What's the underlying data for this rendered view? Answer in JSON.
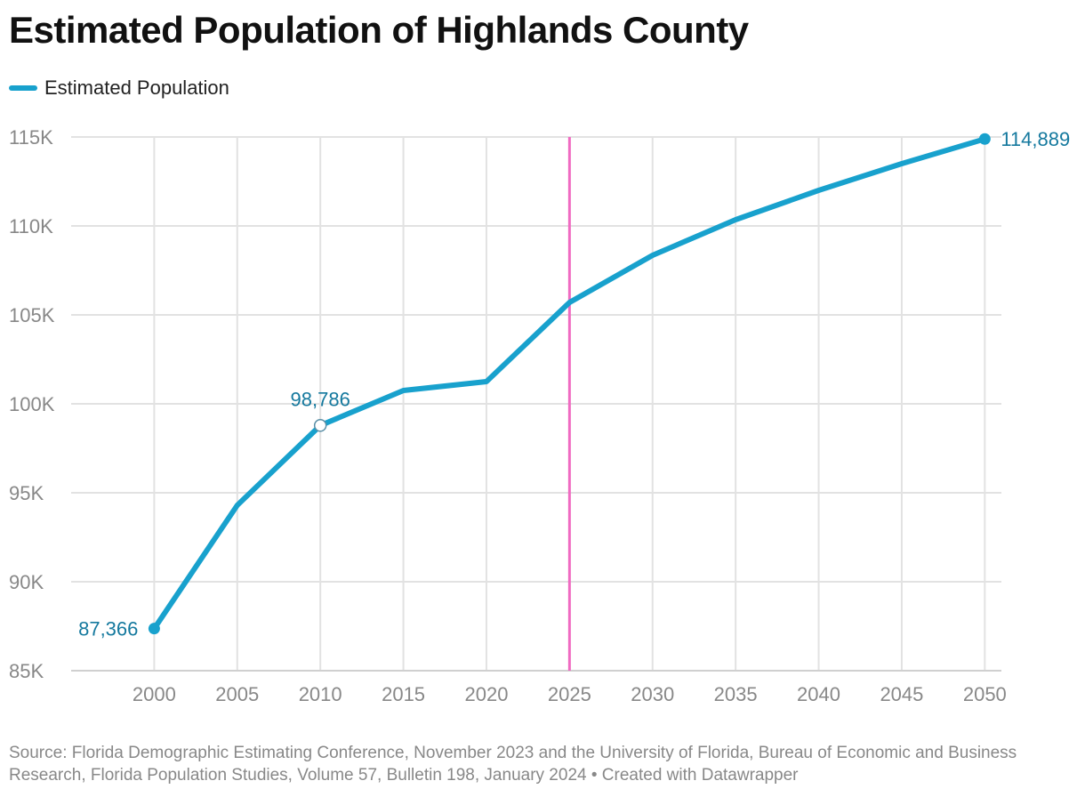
{
  "title": "Estimated Population of Highlands County",
  "legend": {
    "label": "Estimated Population"
  },
  "colors": {
    "series": "#18a1cd",
    "label": "#15799e",
    "reference_line": "#f06bc2",
    "grid": "#e2e2e2",
    "tick": "#888888"
  },
  "chart_data": {
    "type": "line",
    "title": "Estimated Population of Highlands County",
    "xlabel": "",
    "ylabel": "",
    "x": [
      2000,
      2005,
      2010,
      2015,
      2020,
      2025,
      2030,
      2035,
      2040,
      2045,
      2050
    ],
    "series": [
      {
        "name": "Estimated Population",
        "values": [
          87366,
          94300,
          98786,
          100750,
          101250,
          105700,
          108350,
          110350,
          112000,
          113500,
          114889
        ]
      }
    ],
    "xlim": [
      1995,
      2051
    ],
    "ylim": [
      85000,
      115000
    ],
    "x_ticks": [
      "2000",
      "2005",
      "2010",
      "2015",
      "2020",
      "2025",
      "2030",
      "2035",
      "2040",
      "2045",
      "2050"
    ],
    "y_ticks": [
      {
        "value": 85000,
        "label": "85K"
      },
      {
        "value": 90000,
        "label": "90K"
      },
      {
        "value": 95000,
        "label": "95K"
      },
      {
        "value": 100000,
        "label": "100K"
      },
      {
        "value": 105000,
        "label": "105K"
      },
      {
        "value": 110000,
        "label": "110K"
      },
      {
        "value": 115000,
        "label": "115K"
      }
    ],
    "reference_line_x": 2025,
    "annotations": [
      {
        "x": 2000,
        "y": 87366,
        "text": "87,366",
        "marker": "filled",
        "position": "left"
      },
      {
        "x": 2010,
        "y": 98786,
        "text": "98,786",
        "marker": "hollow",
        "position": "above"
      },
      {
        "x": 2050,
        "y": 114889,
        "text": "114,889",
        "marker": "filled",
        "position": "right"
      }
    ],
    "grid": true,
    "legend_position": "top-left"
  },
  "footer": {
    "source": "Source: Florida Demographic Estimating Conference, November 2023 and the University of Florida, Bureau of Economic and Business Research, Florida Population Studies, Volume 57, Bulletin 198, January 2024",
    "credit": " • Created with Datawrapper"
  }
}
